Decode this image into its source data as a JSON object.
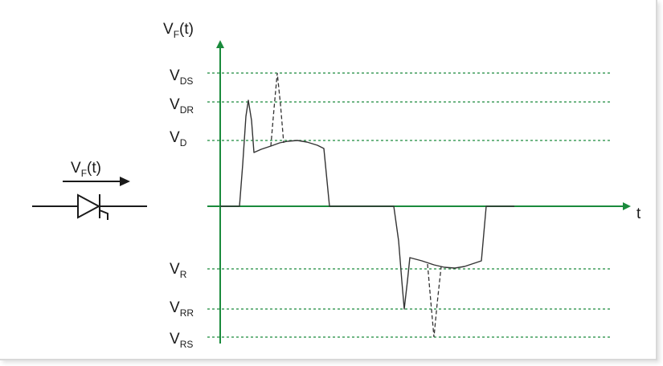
{
  "diagram": {
    "y_axis": {
      "main": "V",
      "sub": "F",
      "suffix": "(t)"
    },
    "x_axis": {
      "label": "t"
    },
    "levels": [
      {
        "main": "V",
        "sub": "DS"
      },
      {
        "main": "V",
        "sub": "DR"
      },
      {
        "main": "V",
        "sub": "D"
      },
      {
        "main": "V",
        "sub": "R"
      },
      {
        "main": "V",
        "sub": "RR"
      },
      {
        "main": "V",
        "sub": "RS"
      }
    ],
    "symbol_label": {
      "main": "V",
      "sub": "F",
      "suffix": "(t)"
    },
    "colors": {
      "axis": "#1a8a3c",
      "guide": "#1a8a3c",
      "waveform": "#333333"
    }
  }
}
